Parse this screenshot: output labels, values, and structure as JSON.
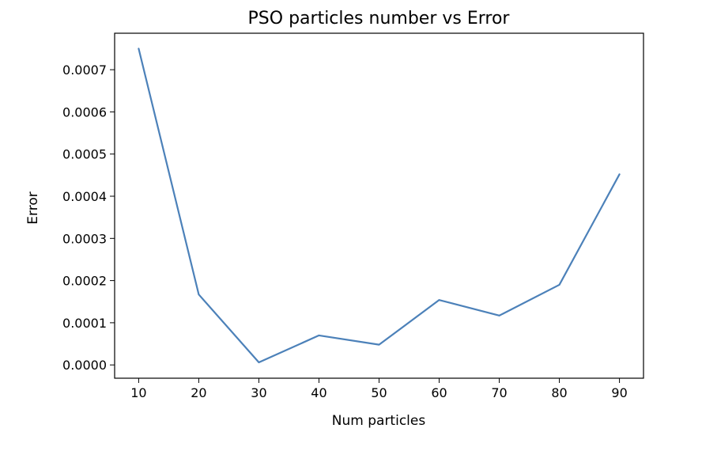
{
  "chart_data": {
    "type": "line",
    "title": "PSO particles number vs Error",
    "xlabel": "Num particles",
    "ylabel": "Error",
    "x": [
      10,
      20,
      30,
      40,
      50,
      60,
      70,
      80,
      90
    ],
    "series": [
      {
        "values": [
          0.00075,
          0.000167,
          6e-06,
          7e-05,
          4.8e-05,
          0.000154,
          0.000117,
          0.00019,
          0.000452
        ],
        "color": "#4c81b9"
      }
    ],
    "xlim": [
      6.0,
      94.0
    ],
    "ylim": [
      -3.15e-05,
      0.0007865
    ],
    "xticks": [
      10,
      20,
      30,
      40,
      50,
      60,
      70,
      80,
      90
    ],
    "xtick_labels": [
      "10",
      "20",
      "30",
      "40",
      "50",
      "60",
      "70",
      "80",
      "90"
    ],
    "yticks": [
      0,
      0.0001,
      0.0002,
      0.0003,
      0.0004,
      0.0005,
      0.0006,
      0.0007
    ],
    "ytick_labels": [
      "0.0000",
      "0.0001",
      "0.0002",
      "0.0003",
      "0.0004",
      "0.0005",
      "0.0006",
      "0.0007"
    ],
    "grid": false,
    "legend": "none"
  }
}
